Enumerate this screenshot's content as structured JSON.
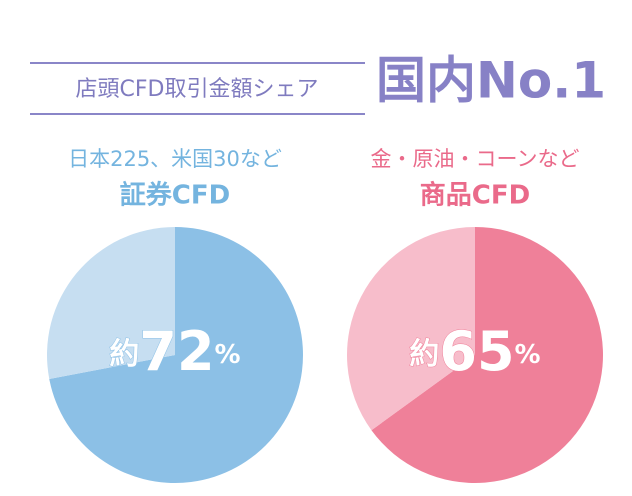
{
  "header": {
    "label": "店頭CFD取引金額シェア",
    "claim": "国内No.1"
  },
  "chart_data": [
    {
      "type": "pie",
      "title": "日本225、米国30など",
      "subtitle": "証券CFD",
      "values": [
        72,
        28
      ],
      "value_labels": [
        "約72%",
        null
      ],
      "colors": [
        "#8cc0e6",
        "#c6def1"
      ],
      "title_color": "#74b4df"
    },
    {
      "type": "pie",
      "title": "金・原油・コーンなど",
      "subtitle": "商品CFD",
      "values": [
        65,
        35
      ],
      "value_labels": [
        "約65%",
        null
      ],
      "colors": [
        "#ef8099",
        "#f7bdcb"
      ],
      "title_color": "#ea6a8a"
    }
  ]
}
